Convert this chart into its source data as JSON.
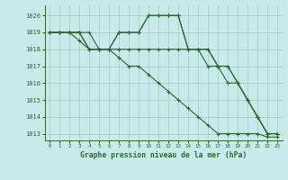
{
  "title": "Graphe pression niveau de la mer (hPa)",
  "background_color": "#c8eaea",
  "grid_color": "#a0c8c8",
  "line_color": "#2d6a2d",
  "xlim": [
    -0.5,
    23.5
  ],
  "ylim": [
    1012.6,
    1020.6
  ],
  "yticks": [
    1013,
    1014,
    1015,
    1016,
    1017,
    1018,
    1019,
    1020
  ],
  "xticks": [
    0,
    1,
    2,
    3,
    4,
    5,
    6,
    7,
    8,
    9,
    10,
    11,
    12,
    13,
    14,
    15,
    16,
    17,
    18,
    19,
    20,
    21,
    22,
    23
  ],
  "series": [
    {
      "x": [
        0,
        1,
        2,
        3,
        4,
        5,
        6,
        7,
        8,
        9,
        10,
        11,
        12,
        13,
        14,
        15,
        16,
        17,
        18,
        19,
        20,
        21,
        22,
        23
      ],
      "y": [
        1019,
        1019,
        1019,
        1019,
        1019,
        1018,
        1018,
        1019,
        1019,
        1019,
        1020,
        1020,
        1020,
        1020,
        1018,
        1018,
        1018,
        1017,
        1017,
        1016,
        1015,
        1014,
        1013,
        1013
      ]
    },
    {
      "x": [
        0,
        1,
        2,
        3,
        4,
        5,
        6,
        7,
        8,
        9,
        10,
        11,
        12,
        13,
        14,
        15,
        16,
        17,
        18,
        19,
        20,
        21,
        22,
        23
      ],
      "y": [
        1019,
        1019,
        1019,
        1019,
        1018,
        1018,
        1018,
        1019,
        1019,
        1019,
        1020,
        1020,
        1020,
        1020,
        1018,
        1018,
        1018,
        1017,
        1017,
        1016,
        1015,
        1014,
        1013,
        1013
      ]
    },
    {
      "x": [
        0,
        1,
        2,
        3,
        4,
        5,
        6,
        7,
        8,
        9,
        10,
        11,
        12,
        13,
        14,
        15,
        16,
        17,
        18,
        19,
        20,
        21,
        22,
        23
      ],
      "y": [
        1019,
        1019,
        1019,
        1019,
        1018,
        1018,
        1018,
        1018,
        1018,
        1018,
        1018,
        1018,
        1018,
        1018,
        1018,
        1018,
        1017,
        1017,
        1016,
        1016,
        1015,
        1014,
        1013,
        1013
      ]
    },
    {
      "x": [
        0,
        1,
        2,
        3,
        4,
        5,
        6,
        7,
        8,
        9,
        10,
        11,
        12,
        13,
        14,
        15,
        16,
        17,
        18,
        19,
        20,
        21,
        22,
        23
      ],
      "y": [
        1019,
        1019,
        1019,
        1018.5,
        1018,
        1018,
        1018,
        1017.5,
        1017,
        1017,
        1016.5,
        1016,
        1015.5,
        1015,
        1014.5,
        1014,
        1013.5,
        1013,
        1013,
        1013,
        1013,
        1013,
        1012.8,
        1012.8
      ]
    }
  ]
}
